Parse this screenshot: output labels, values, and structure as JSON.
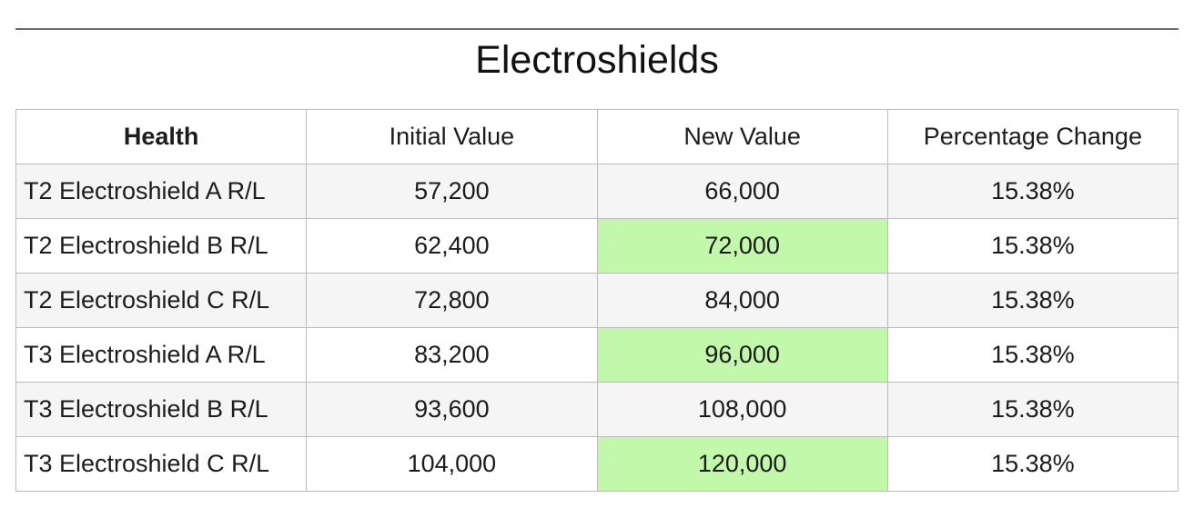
{
  "title": "Electroshields",
  "chart_data": {
    "type": "table",
    "title": "Electroshields",
    "columns": [
      "Health",
      "Initial Value",
      "New Value",
      "Percentage Change"
    ],
    "rows": [
      [
        "T2 Electroshield A R/L",
        "57,200",
        "66,000",
        "15.38%"
      ],
      [
        "T2 Electroshield B R/L",
        "62,400",
        "72,000",
        "15.38%"
      ],
      [
        "T2 Electroshield C R/L",
        "72,800",
        "84,000",
        "15.38%"
      ],
      [
        "T3 Electroshield A R/L",
        "83,200",
        "96,000",
        "15.38%"
      ],
      [
        "T3 Electroshield B R/L",
        "93,600",
        "108,000",
        "15.38%"
      ],
      [
        "T3 Electroshield C R/L",
        "104,000",
        "120,000",
        "15.38%"
      ]
    ],
    "layout_hints": {
      "highlighted_column": "New Value",
      "striped_rows": [
        1,
        3,
        5
      ],
      "first_column_align": "left",
      "other_columns_align": "center"
    }
  },
  "colors": {
    "highlight_green": "#c2f8aa",
    "stripe_gray": "#f5f5f5",
    "border_gray": "#bcbcbc",
    "top_rule_gray": "#696969",
    "text": "#1c1c1c"
  }
}
